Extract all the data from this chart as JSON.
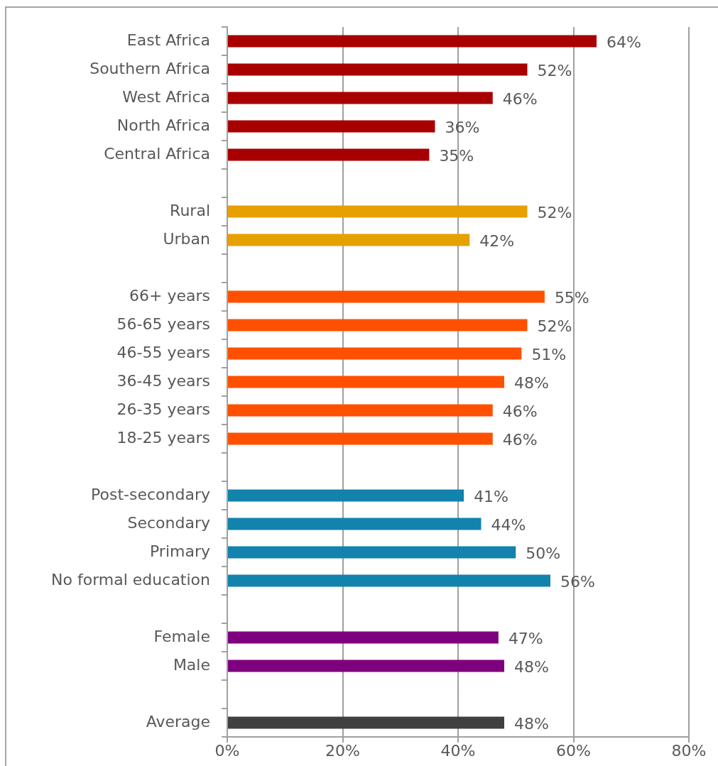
{
  "chart_data": {
    "type": "bar",
    "orientation": "horizontal",
    "categories": [
      "East Africa",
      "Southern Africa",
      "West Africa",
      "North Africa",
      "Central Africa",
      null,
      "Rural",
      "Urban",
      null,
      "66+ years",
      "56-65 years",
      "46-55 years",
      "36-45 years",
      "26-35 years",
      "18-25 years",
      null,
      "Post-secondary",
      "Secondary",
      "Primary",
      "No formal education",
      null,
      "Female",
      "Male",
      null,
      "Average"
    ],
    "values": [
      64,
      52,
      46,
      36,
      35,
      null,
      52,
      42,
      null,
      55,
      52,
      51,
      48,
      46,
      46,
      null,
      41,
      44,
      50,
      56,
      null,
      47,
      48,
      null,
      48
    ],
    "value_labels": [
      "64%",
      "52%",
      "46%",
      "36%",
      "35%",
      null,
      "52%",
      "42%",
      null,
      "55%",
      "52%",
      "51%",
      "48%",
      "46%",
      "46%",
      null,
      "41%",
      "44%",
      "50%",
      "56%",
      null,
      "47%",
      "48%",
      null,
      "48%"
    ],
    "colors": [
      "#a80000",
      "#a80000",
      "#a80000",
      "#a80000",
      "#a80000",
      null,
      "#e6a000",
      "#e6a000",
      null,
      "#ff5000",
      "#ff5000",
      "#ff5000",
      "#ff5000",
      "#ff5000",
      "#ff5000",
      null,
      "#1283ad",
      "#1283ad",
      "#1283ad",
      "#1283ad",
      null,
      "#7f007f",
      "#7f007f",
      null,
      "#404040"
    ],
    "xlim": [
      0,
      80
    ],
    "xticks": [
      {
        "value": 0,
        "label": "0%"
      },
      {
        "value": 20,
        "label": "20%"
      },
      {
        "value": 40,
        "label": "40%"
      },
      {
        "value": 60,
        "label": "60%"
      },
      {
        "value": 80,
        "label": "80%"
      }
    ],
    "grid": "x",
    "legend": false
  }
}
